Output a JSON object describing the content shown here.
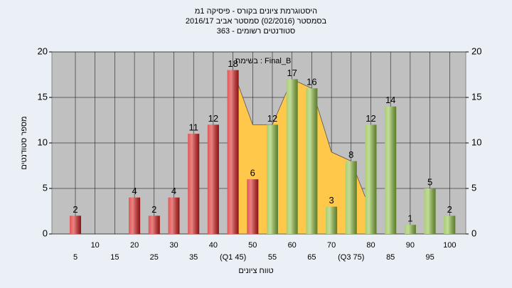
{
  "chart_data": {
    "type": "bar",
    "title": "היסטוגרמת ציונים בקורס - פיסיקה 1מ",
    "subtitle": "בסמסטר (02/2016) סמסטר אביב 2016/17",
    "subtitle2": "363 - סטודנטים רשומים",
    "annotation": "בשימת : Final_B",
    "x_label": "טווח ציונים",
    "y_label": "מספר סטודנטים",
    "categories": [
      "5",
      "10",
      "15",
      "20",
      "25",
      "30",
      "35",
      "40",
      "(Q1 45)",
      "50",
      "55",
      "60",
      "65",
      "70",
      "(Q3 75)",
      "80",
      "85",
      "90",
      "95",
      "100"
    ],
    "values": [
      2,
      0,
      0,
      4,
      2,
      4,
      11,
      12,
      18,
      6,
      12,
      17,
      16,
      3,
      8,
      12,
      14,
      1,
      5,
      2
    ],
    "colors": [
      "#d81e1e",
      "#d81e1e",
      "#d81e1e",
      "#d81e1e",
      "#d81e1e",
      "#d81e1e",
      "#d81e1e",
      "#d81e1e",
      "#d81e1e",
      "#d81e1e",
      "#8fc043",
      "#8fc043",
      "#8fc043",
      "#8fc043",
      "#8fc043",
      "#8fc043",
      "#8fc043",
      "#8fc043",
      "#8fc043",
      "#8fc043"
    ],
    "area": {
      "color": "#ffc84a",
      "x_index": [
        8,
        9,
        10,
        11,
        12,
        13,
        14,
        15
      ],
      "values": [
        18,
        12,
        12,
        17,
        16,
        9,
        8,
        2.5
      ]
    },
    "ylim": [
      0,
      20
    ],
    "yticks": [
      0,
      5,
      10,
      15,
      20
    ],
    "y2lim": [
      0,
      20
    ],
    "y2ticks": [
      0,
      5,
      10,
      15,
      20
    ],
    "grid": true
  }
}
